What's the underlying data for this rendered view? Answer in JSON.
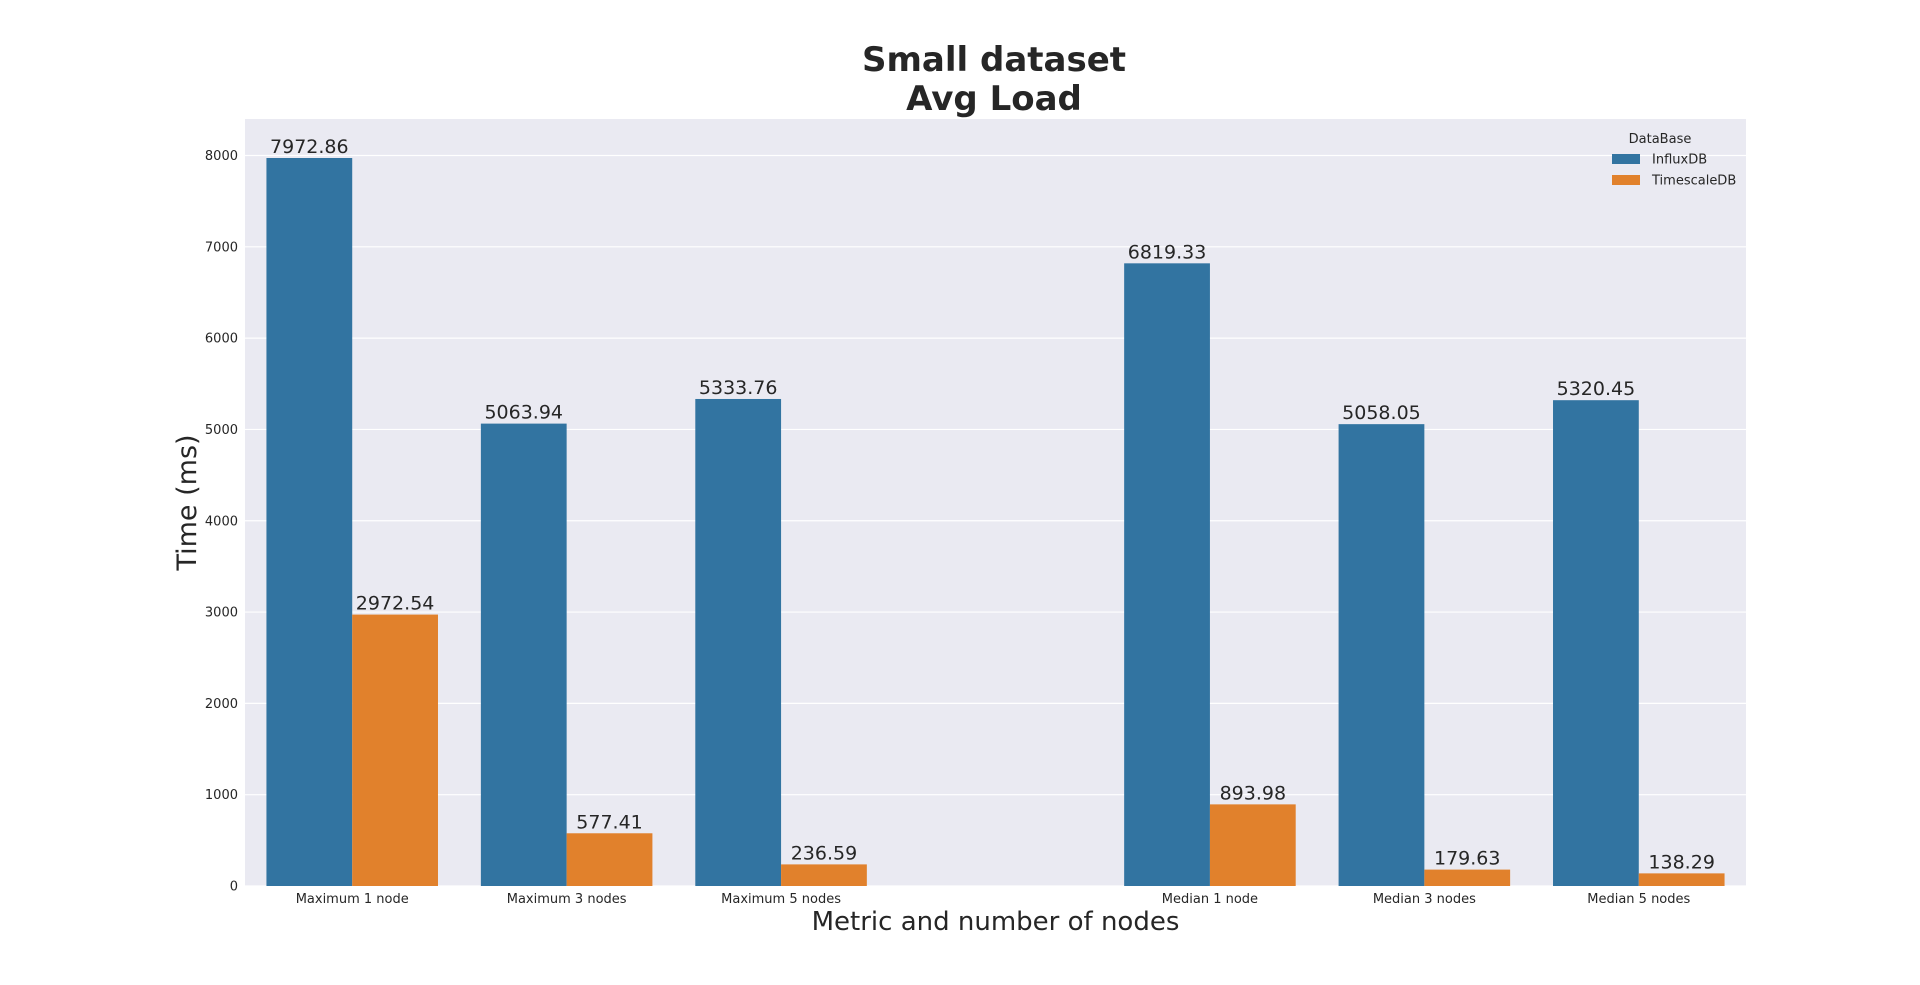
{
  "chart_data": {
    "type": "bar",
    "title": [
      "Small dataset",
      "Avg Load"
    ],
    "xlabel": "Metric and number of nodes",
    "ylabel": "Time (ms)",
    "categories": [
      "Maximum 1 node",
      "Maximum 3 nodes",
      "Maximum 5 nodes",
      "",
      "Median 1 node",
      "Median 3 nodes",
      "Median 5 nodes"
    ],
    "series": [
      {
        "name": "InfluxDB",
        "color": "#3274a1",
        "values": [
          7972.86,
          5063.94,
          5333.76,
          null,
          6819.33,
          5058.05,
          5320.45
        ]
      },
      {
        "name": "TimescaleDB",
        "color": "#e1812c",
        "values": [
          2972.54,
          577.41,
          236.59,
          null,
          893.98,
          179.63,
          138.29
        ]
      }
    ],
    "data_labels": [
      [
        "7972.86",
        "5063.94",
        "5333.76",
        null,
        "6819.33",
        "5058.05",
        "5320.45"
      ],
      [
        "2972.54",
        "577.41",
        "236.59",
        null,
        "893.98",
        "179.63",
        "138.29"
      ]
    ],
    "yticks": [
      0,
      1000,
      2000,
      3000,
      4000,
      5000,
      6000,
      7000,
      8000
    ],
    "ylim": [
      0,
      8400
    ],
    "legend": {
      "title": "DataBase",
      "position": "top-right"
    },
    "grid": true,
    "style": {
      "background": "#eaeaf2",
      "grid_color": "#ffffff"
    }
  }
}
